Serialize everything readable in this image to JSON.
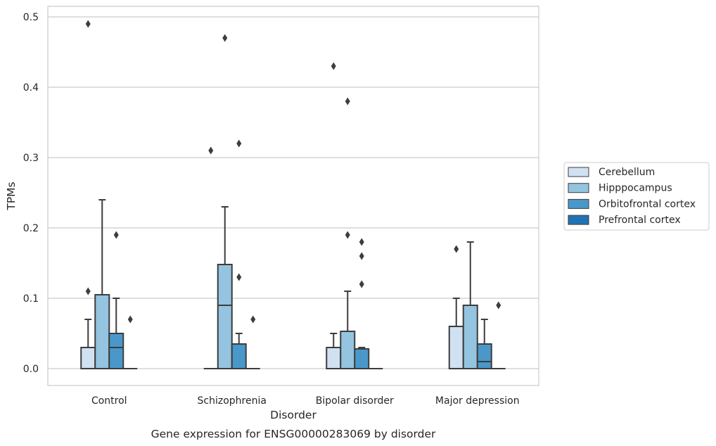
{
  "caption": "Gene expression for ENSG00000283069 by disorder",
  "chart_data": {
    "type": "box",
    "xlabel": "Disorder",
    "ylabel": "TPMs",
    "categories": [
      "Control",
      "Schizophrenia",
      "Bipolar disorder",
      "Major depression"
    ],
    "ylim": [
      -0.024,
      0.515
    ],
    "yticks": [
      0.0,
      0.1,
      0.2,
      0.3,
      0.4,
      0.5
    ],
    "ytick_labels": [
      "0.0",
      "0.1",
      "0.2",
      "0.3",
      "0.4",
      "0.5"
    ],
    "grid": true,
    "legend_position": "right",
    "series": [
      {
        "name": "Cerebellum",
        "color": "#d0e1f2",
        "boxes": [
          {
            "q1": 0.0,
            "median": 0.0,
            "q3": 0.03,
            "whisker_low": 0.0,
            "whisker_high": 0.07,
            "outliers": [
              0.11,
              0.49
            ]
          },
          {
            "q1": 0.0,
            "median": 0.0,
            "q3": 0.0,
            "whisker_low": 0.0,
            "whisker_high": 0.0,
            "outliers": [
              0.31
            ]
          },
          {
            "q1": 0.0,
            "median": 0.0,
            "q3": 0.03,
            "whisker_low": 0.0,
            "whisker_high": 0.05,
            "outliers": [
              0.43
            ]
          },
          {
            "q1": 0.0,
            "median": 0.0,
            "q3": 0.06,
            "whisker_low": 0.0,
            "whisker_high": 0.1,
            "outliers": [
              0.17
            ]
          }
        ]
      },
      {
        "name": "Hipppocampus",
        "color": "#94c4df",
        "boxes": [
          {
            "q1": 0.0,
            "median": 0.0,
            "q3": 0.105,
            "whisker_low": 0.0,
            "whisker_high": 0.24,
            "outliers": []
          },
          {
            "q1": 0.0,
            "median": 0.09,
            "q3": 0.148,
            "whisker_low": 0.0,
            "whisker_high": 0.23,
            "outliers": [
              0.47
            ]
          },
          {
            "q1": 0.0,
            "median": 0.0,
            "q3": 0.053,
            "whisker_low": 0.0,
            "whisker_high": 0.11,
            "outliers": [
              0.19,
              0.38
            ]
          },
          {
            "q1": 0.0,
            "median": 0.0,
            "q3": 0.09,
            "whisker_low": 0.0,
            "whisker_high": 0.18,
            "outliers": []
          }
        ]
      },
      {
        "name": "Orbitofrontal cortex",
        "color": "#4a98c9",
        "boxes": [
          {
            "q1": 0.0,
            "median": 0.03,
            "q3": 0.05,
            "whisker_low": 0.0,
            "whisker_high": 0.1,
            "outliers": [
              0.19
            ]
          },
          {
            "q1": 0.0,
            "median": 0.0,
            "q3": 0.035,
            "whisker_low": 0.0,
            "whisker_high": 0.05,
            "outliers": [
              0.13,
              0.32
            ]
          },
          {
            "q1": 0.0,
            "median": 0.0,
            "q3": 0.028,
            "whisker_low": 0.0,
            "whisker_high": 0.03,
            "outliers": [
              0.12,
              0.16,
              0.18
            ]
          },
          {
            "q1": 0.0,
            "median": 0.01,
            "q3": 0.035,
            "whisker_low": 0.0,
            "whisker_high": 0.07,
            "outliers": []
          }
        ]
      },
      {
        "name": "Prefrontal cortex",
        "color": "#2171b5",
        "boxes": [
          {
            "q1": 0.0,
            "median": 0.0,
            "q3": 0.0,
            "whisker_low": 0.0,
            "whisker_high": 0.0,
            "outliers": [
              0.07
            ]
          },
          {
            "q1": 0.0,
            "median": 0.0,
            "q3": 0.0,
            "whisker_low": 0.0,
            "whisker_high": 0.0,
            "outliers": [
              0.07
            ]
          },
          {
            "q1": 0.0,
            "median": 0.0,
            "q3": 0.0,
            "whisker_low": 0.0,
            "whisker_high": 0.0,
            "outliers": []
          },
          {
            "q1": 0.0,
            "median": 0.0,
            "q3": 0.0,
            "whisker_low": 0.0,
            "whisker_high": 0.0,
            "outliers": [
              0.09
            ]
          }
        ]
      }
    ]
  }
}
